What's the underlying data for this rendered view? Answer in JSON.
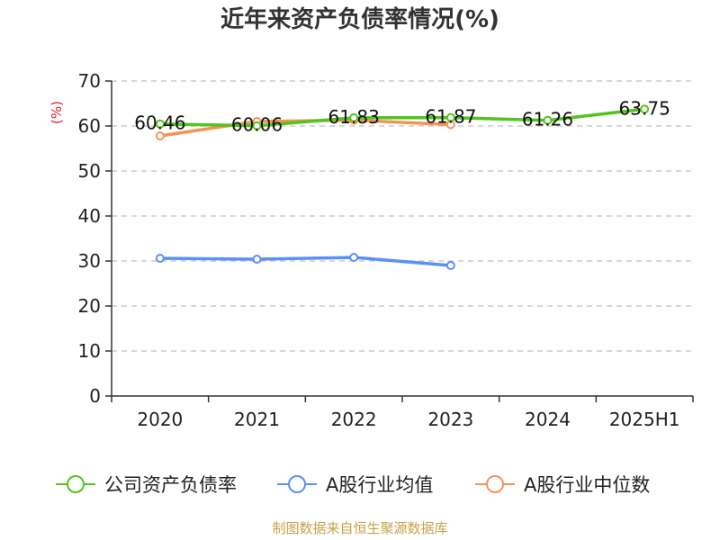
{
  "chart_data": {
    "type": "line",
    "title": "近年来资产负债率情况(%)",
    "unit": "(%)",
    "categories": [
      "2020",
      "2021",
      "2022",
      "2023",
      "2024",
      "2025H1"
    ],
    "ylim": [
      0,
      70
    ],
    "yticks": [
      0,
      10,
      20,
      30,
      40,
      50,
      60,
      70
    ],
    "grid": true,
    "legend_position": "bottom",
    "series": [
      {
        "name": "公司资产负债率",
        "color": "#52c41a",
        "values": [
          60.46,
          60.06,
          61.83,
          61.87,
          61.26,
          63.75
        ],
        "labels": [
          "60.46",
          "60.06",
          "61.83",
          "61.87",
          "61.26",
          "63.75"
        ]
      },
      {
        "name": "A股行业均值",
        "color": "#5b8ff9",
        "values": [
          30.6,
          30.4,
          30.8,
          29.0,
          null,
          null
        ]
      },
      {
        "name": "A股行业中位数",
        "color": "#f6915a",
        "values": [
          57.8,
          61.0,
          61.3,
          60.3,
          null,
          null
        ]
      }
    ]
  },
  "source": "制图数据来自恒生聚源数据库"
}
